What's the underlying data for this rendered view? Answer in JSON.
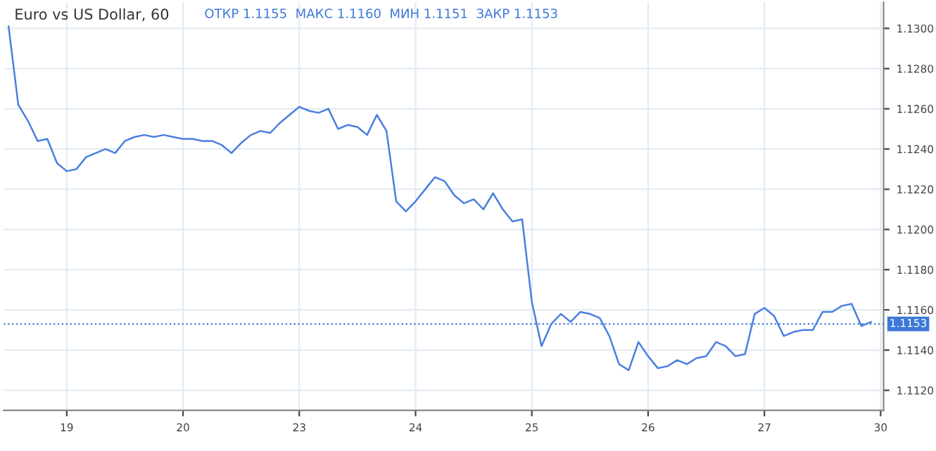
{
  "chart_data": {
    "type": "line",
    "title": "Euro vs US Dollar, 60",
    "subtitle": "ОТКР 1.1155  МАКС 1.1160  МИН 1.1151  ЗАКР 1.1153",
    "categories": [
      null,
      null,
      null,
      null,
      null,
      null,
      "19",
      null,
      null,
      null,
      null,
      null,
      null,
      null,
      null,
      null,
      null,
      null,
      "20",
      null,
      null,
      null,
      null,
      null,
      null,
      null,
      null,
      null,
      null,
      null,
      "23",
      null,
      null,
      null,
      null,
      null,
      null,
      null,
      null,
      null,
      null,
      null,
      "24",
      null,
      null,
      null,
      null,
      null,
      null,
      null,
      null,
      null,
      null,
      null,
      "25",
      null,
      null,
      null,
      null,
      null,
      null,
      null,
      null,
      null,
      null,
      null,
      "26",
      null,
      null,
      null,
      null,
      null,
      null,
      null,
      null,
      null,
      null,
      null,
      "27",
      null,
      null,
      null,
      null,
      null,
      null,
      null,
      null,
      null,
      null,
      null,
      "30"
    ],
    "series": [
      {
        "color": "#4a7fe0",
        "values": [
          1.1301,
          1.1262,
          1.1254,
          1.1244,
          1.1245,
          1.1233,
          1.1229,
          1.123,
          1.1236,
          1.1238,
          1.124,
          1.1238,
          1.1244,
          1.1246,
          1.1247,
          1.1246,
          1.1247,
          1.1246,
          1.1245,
          1.1245,
          1.1244,
          1.1244,
          1.1242,
          1.1238,
          1.1243,
          1.1247,
          1.1249,
          1.1248,
          1.1253,
          1.1257,
          1.1261,
          1.1259,
          1.1258,
          1.126,
          1.125,
          1.1252,
          1.1251,
          1.1247,
          1.1257,
          1.1249,
          1.1214,
          1.1209,
          1.1214,
          1.122,
          1.1226,
          1.1224,
          1.1217,
          1.1213,
          1.1215,
          1.121,
          1.1218,
          1.121,
          1.1204,
          1.1205,
          1.1164,
          1.1142,
          1.1153,
          1.1158,
          1.1154,
          1.1159,
          1.1158,
          1.1156,
          1.1147,
          1.1133,
          1.113,
          1.1144,
          1.1137,
          1.1131,
          1.1132,
          1.1135,
          1.1133,
          1.1136,
          1.1137,
          1.1144,
          1.1142,
          1.1137,
          1.1138,
          1.1158,
          1.1161,
          1.1157,
          1.1147,
          1.1149,
          1.115,
          1.115,
          1.1159,
          1.1159,
          1.1162,
          1.1163,
          1.1152,
          1.1154,
          null
        ]
      }
    ],
    "ylim": [
      1.111,
      1.1313
    ],
    "yticks": [
      {
        "value": 1.112,
        "label": "1.1120"
      },
      {
        "value": 1.114,
        "label": "1.1140"
      },
      {
        "value": 1.116,
        "label": "1.1160"
      },
      {
        "value": 1.118,
        "label": "1.1180"
      },
      {
        "value": 1.12,
        "label": "1.1200"
      },
      {
        "value": 1.122,
        "label": "1.1220"
      },
      {
        "value": 1.124,
        "label": "1.1240"
      },
      {
        "value": 1.126,
        "label": "1.1260"
      },
      {
        "value": 1.128,
        "label": "1.1280"
      },
      {
        "value": 1.13,
        "label": "1.1300"
      }
    ],
    "ref_lines": [
      {
        "axis": "y",
        "value": 1.1153,
        "label": "1.1153",
        "color": "#3c78d8",
        "line_style": "dotted"
      }
    ],
    "grid": true,
    "line_style": "solid",
    "marker": "none"
  }
}
